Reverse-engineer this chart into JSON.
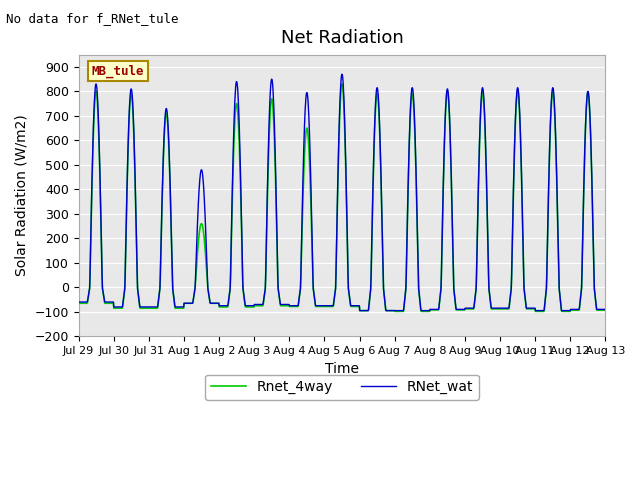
{
  "title": "Net Radiation",
  "xlabel": "Time",
  "ylabel": "Solar Radiation (W/m2)",
  "top_left_text": "No data for f_RNet_tule",
  "box_label": "MB_tule",
  "ylim": [
    -200,
    950
  ],
  "yticks": [
    -200,
    -100,
    0,
    100,
    200,
    300,
    400,
    500,
    600,
    700,
    800,
    900
  ],
  "xtick_labels": [
    "Jul 29",
    "Jul 30",
    "Jul 31",
    "Aug 1",
    "Aug 2",
    "Aug 3",
    "Aug 4",
    "Aug 5",
    "Aug 6",
    "Aug 7",
    "Aug 8",
    "Aug 9",
    "Aug 10",
    "Aug 11",
    "Aug 12",
    "Aug 13"
  ],
  "line1_color": "#0000cc",
  "line2_color": "#00cc00",
  "line1_label": "RNet_wat",
  "line2_label": "Rnet_4way",
  "bg_color": "#ffffff",
  "plot_bg_color": "#e8e8e8",
  "grid_color": "#ffffff",
  "n_days": 15,
  "points_per_day": 96,
  "day_peaks_blue": [
    830,
    810,
    730,
    480,
    840,
    850,
    795,
    870,
    815,
    815,
    810,
    815,
    815,
    815,
    800
  ],
  "day_peaks_green": [
    800,
    790,
    710,
    260,
    750,
    770,
    650,
    830,
    790,
    790,
    800,
    795,
    800,
    795,
    795
  ],
  "night_min_blue": [
    -60,
    -80,
    -80,
    -65,
    -75,
    -70,
    -75,
    -75,
    -95,
    -95,
    -90,
    -85,
    -85,
    -95,
    -90
  ],
  "night_min_green": [
    -65,
    -85,
    -85,
    -65,
    -80,
    -75,
    -78,
    -78,
    -95,
    -98,
    -92,
    -88,
    -88,
    -98,
    -93
  ]
}
